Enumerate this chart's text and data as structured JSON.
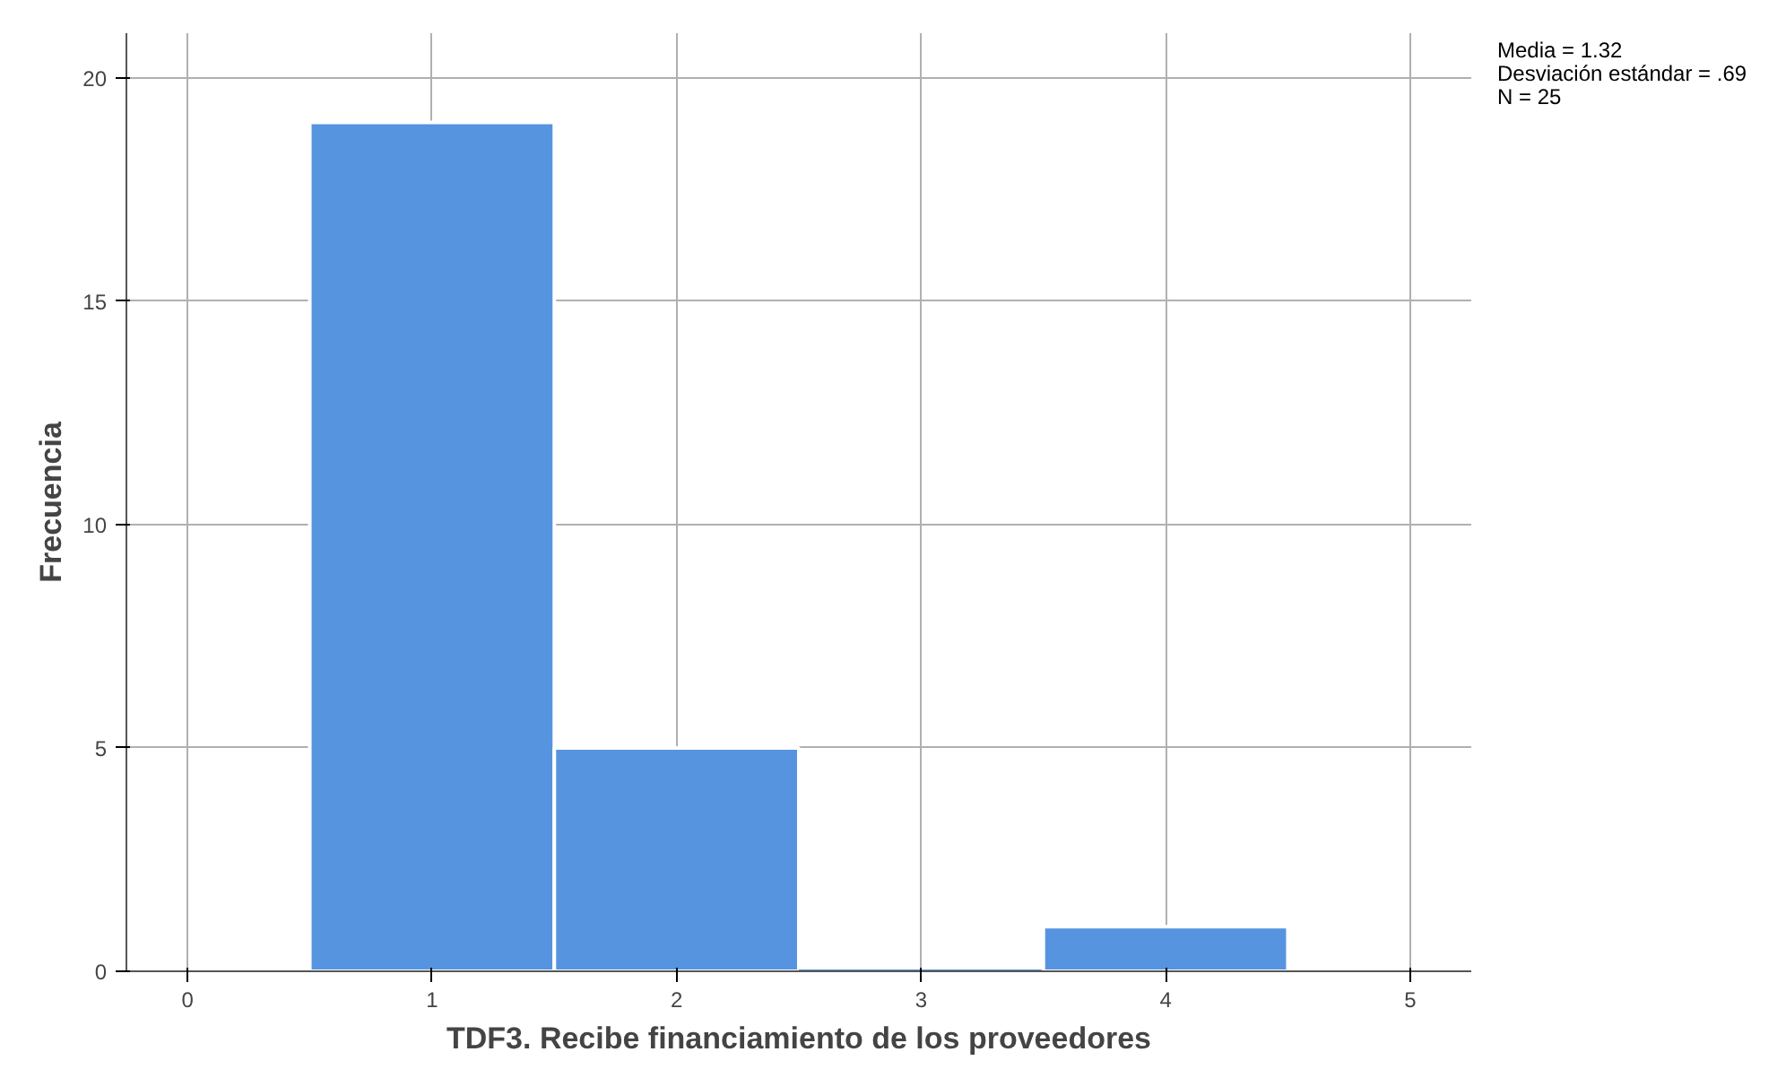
{
  "chart_data": {
    "type": "histogram",
    "xlabel": "TDF3. Recibe financiamiento de los proveedores",
    "ylabel": "Frecuencia",
    "bins": [
      0.5,
      1.5,
      2.5,
      3.5,
      4.5
    ],
    "values": [
      19,
      5,
      0,
      1
    ],
    "color": "#5694e0",
    "xlim": [
      -0.25,
      5.25
    ],
    "ylim": [
      0,
      21
    ],
    "xticks": [
      0,
      1,
      2,
      3,
      4,
      5
    ],
    "yticks": [
      0,
      5,
      10,
      15,
      20
    ],
    "grid": true,
    "annotations": [
      "Media = 1.32",
      "Desviación estándar = .69",
      "N = 25"
    ]
  }
}
